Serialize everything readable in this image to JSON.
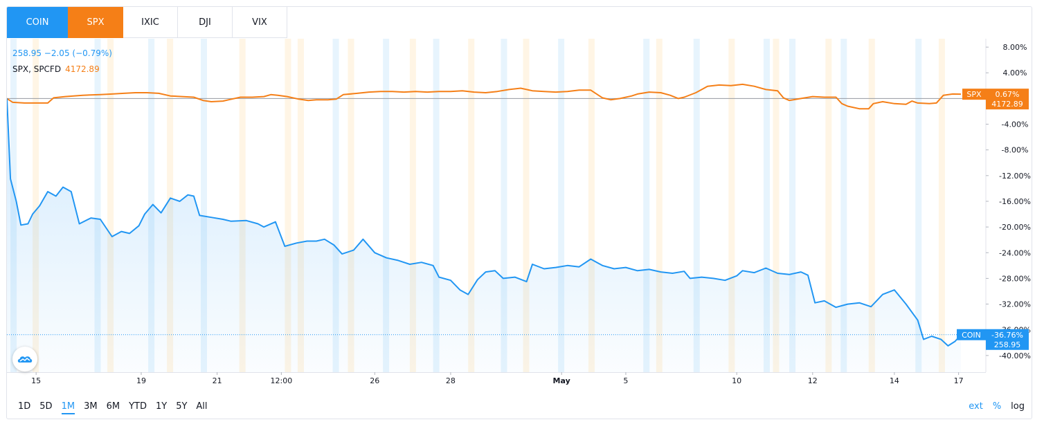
{
  "tabs": [
    {
      "label": "COIN",
      "style": "blue"
    },
    {
      "label": "SPX",
      "style": "orange"
    },
    {
      "label": "IXIC",
      "style": "plain"
    },
    {
      "label": "DJI",
      "style": "plain"
    },
    {
      "label": "VIX",
      "style": "plain"
    }
  ],
  "legend": {
    "coin_line": "258.95 −2.05 (−0.79%)",
    "spx_name": "SPX, SPCFD",
    "spx_value": "4172.89"
  },
  "footer": {
    "ranges": [
      "1D",
      "5D",
      "1M",
      "3M",
      "6M",
      "YTD",
      "1Y",
      "5Y",
      "All"
    ],
    "active_range": "1M",
    "options": [
      "ext",
      "%",
      "log"
    ],
    "active_options": [
      "ext",
      "%"
    ]
  },
  "colors": {
    "coin": "#2196f3",
    "spx": "#f57f17",
    "grid_line": "#b2b5be",
    "session_blue": "#e3f2fd",
    "session_orange": "#fff3e0"
  },
  "logo_icon": "tradingview-logo-icon",
  "chart_data": {
    "type": "line",
    "title": "",
    "xlabel": "",
    "ylabel": "",
    "y_unit": "percent change",
    "ylim": [
      -42.6,
      9.3
    ],
    "y_ticks": [
      8,
      4,
      0,
      -4,
      -8,
      -12,
      -16,
      -20,
      -24,
      -28,
      -32,
      -36,
      -40
    ],
    "y_tick_labels": [
      "8.00%",
      "4.00%",
      "",
      "-4.00%",
      "-8.00%",
      "-12.00%",
      "-16.00%",
      "-20.00%",
      "-24.00%",
      "-28.00%",
      "-32.00%",
      "-36.00%",
      "-40.00%"
    ],
    "x_ticks": [
      {
        "label": "15",
        "t": 2.5
      },
      {
        "label": "19",
        "t": 11.5
      },
      {
        "label": "21",
        "t": 18
      },
      {
        "label": "12:00",
        "t": 23.5
      },
      {
        "label": "26",
        "t": 31.5
      },
      {
        "label": "28",
        "t": 38
      },
      {
        "label": "May",
        "t": 47.5
      },
      {
        "label": "5",
        "t": 53
      },
      {
        "label": "10",
        "t": 62.5
      },
      {
        "label": "12",
        "t": 69
      },
      {
        "label": "14",
        "t": 76
      },
      {
        "label": "17",
        "t": 81.5
      }
    ],
    "x_range": [
      0,
      81.7
    ],
    "baseline": 0,
    "series": [
      {
        "name": "SPX",
        "color": "#f57f17",
        "last_pct_label": "0.67%",
        "last_price_label": "4172.89",
        "points": [
          [
            0,
            0
          ],
          [
            0.5,
            -0.6
          ],
          [
            1.5,
            -0.7
          ],
          [
            3.5,
            -0.7
          ],
          [
            4,
            0.1
          ],
          [
            5,
            0.3
          ],
          [
            6.5,
            0.5
          ],
          [
            8,
            0.6
          ],
          [
            9,
            0.7
          ],
          [
            10,
            0.8
          ],
          [
            11,
            0.9
          ],
          [
            12,
            0.9
          ],
          [
            13,
            0.8
          ],
          [
            14,
            0.4
          ],
          [
            15,
            0.3
          ],
          [
            16,
            0.2
          ],
          [
            16.8,
            -0.3
          ],
          [
            17.5,
            -0.5
          ],
          [
            18.5,
            -0.4
          ],
          [
            19,
            -0.2
          ],
          [
            20,
            0.2
          ],
          [
            21,
            0.2
          ],
          [
            22,
            0.3
          ],
          [
            22.6,
            0.6
          ],
          [
            23.2,
            0.5
          ],
          [
            24,
            0.3
          ],
          [
            25,
            -0.1
          ],
          [
            25.8,
            -0.3
          ],
          [
            26.5,
            -0.2
          ],
          [
            27.5,
            -0.2
          ],
          [
            28.2,
            -0.1
          ],
          [
            28.8,
            0.6
          ],
          [
            30,
            0.8
          ],
          [
            31,
            1.0
          ],
          [
            32,
            1.1
          ],
          [
            33,
            1.1
          ],
          [
            34,
            1.0
          ],
          [
            35,
            1.1
          ],
          [
            36,
            1.0
          ],
          [
            37,
            1.1
          ],
          [
            38,
            1.1
          ],
          [
            39,
            1.2
          ],
          [
            40,
            1.0
          ],
          [
            41,
            0.9
          ],
          [
            42,
            1.1
          ],
          [
            43,
            1.4
          ],
          [
            44,
            1.6
          ],
          [
            45,
            1.2
          ],
          [
            46,
            1.1
          ],
          [
            47,
            1.0
          ],
          [
            48,
            1.1
          ],
          [
            49,
            1.3
          ],
          [
            50,
            1.3
          ],
          [
            51,
            0.1
          ],
          [
            51.7,
            -0.2
          ],
          [
            52.5,
            0.0
          ],
          [
            53.5,
            0.4
          ],
          [
            54,
            0.7
          ],
          [
            55,
            1.0
          ],
          [
            56,
            0.9
          ],
          [
            56.8,
            0.5
          ],
          [
            57.5,
            0.0
          ],
          [
            58,
            0.2
          ],
          [
            59,
            0.9
          ],
          [
            59.5,
            1.4
          ],
          [
            60,
            1.9
          ],
          [
            61,
            2.1
          ],
          [
            62,
            2.0
          ],
          [
            63,
            2.2
          ],
          [
            64,
            1.9
          ],
          [
            65,
            1.4
          ],
          [
            66,
            1.2
          ],
          [
            66.5,
            0.1
          ],
          [
            67,
            -0.3
          ],
          [
            68,
            0.0
          ],
          [
            69,
            0.3
          ],
          [
            70,
            0.2
          ],
          [
            71,
            0.2
          ],
          [
            71.5,
            -0.8
          ],
          [
            72,
            -1.2
          ],
          [
            73,
            -1.6
          ],
          [
            73.8,
            -1.6
          ],
          [
            74.2,
            -0.8
          ],
          [
            75,
            -0.5
          ],
          [
            76,
            -0.8
          ],
          [
            77,
            -0.9
          ],
          [
            77.5,
            -0.4
          ],
          [
            78,
            -0.7
          ],
          [
            79,
            -0.8
          ],
          [
            79.6,
            -0.7
          ],
          [
            80.2,
            0.5
          ],
          [
            81,
            0.7
          ],
          [
            81.7,
            0.67
          ]
        ]
      },
      {
        "name": "COIN",
        "color": "#2196f3",
        "last_pct_label": "-36.76%",
        "last_price_label": "258.95",
        "points": [
          [
            0,
            0
          ],
          [
            0.3,
            -12.5
          ],
          [
            0.8,
            -16.0
          ],
          [
            1.2,
            -19.7
          ],
          [
            1.8,
            -19.5
          ],
          [
            2.2,
            -18.0
          ],
          [
            2.8,
            -16.7
          ],
          [
            3.5,
            -14.5
          ],
          [
            4.2,
            -15.2
          ],
          [
            4.8,
            -13.8
          ],
          [
            5.5,
            -14.5
          ],
          [
            6.2,
            -19.5
          ],
          [
            7.2,
            -18.6
          ],
          [
            8,
            -18.8
          ],
          [
            9,
            -21.5
          ],
          [
            9.8,
            -20.7
          ],
          [
            10.5,
            -21.0
          ],
          [
            11.3,
            -19.8
          ],
          [
            11.8,
            -18.0
          ],
          [
            12.5,
            -16.5
          ],
          [
            13.2,
            -17.8
          ],
          [
            14,
            -15.5
          ],
          [
            14.8,
            -16.0
          ],
          [
            15.5,
            -15.0
          ],
          [
            16,
            -15.2
          ],
          [
            16.5,
            -18.2
          ],
          [
            17.5,
            -18.5
          ],
          [
            18.5,
            -18.8
          ],
          [
            19.2,
            -19.1
          ],
          [
            20.5,
            -19.0
          ],
          [
            21.5,
            -19.5
          ],
          [
            22,
            -20.0
          ],
          [
            23,
            -19.2
          ],
          [
            23.8,
            -23.0
          ],
          [
            24.8,
            -22.5
          ],
          [
            25.7,
            -22.2
          ],
          [
            26.5,
            -22.2
          ],
          [
            27.2,
            -21.9
          ],
          [
            28,
            -22.8
          ],
          [
            28.7,
            -24.2
          ],
          [
            29.7,
            -23.6
          ],
          [
            30.5,
            -21.9
          ],
          [
            31.5,
            -24.0
          ],
          [
            32.5,
            -24.8
          ],
          [
            33.5,
            -25.2
          ],
          [
            34.5,
            -25.8
          ],
          [
            35.5,
            -25.5
          ],
          [
            36.5,
            -26.0
          ],
          [
            37,
            -27.8
          ],
          [
            38,
            -28.3
          ],
          [
            38.8,
            -29.8
          ],
          [
            39.5,
            -30.5
          ],
          [
            40.3,
            -28.2
          ],
          [
            41,
            -27.0
          ],
          [
            41.8,
            -26.8
          ],
          [
            42.5,
            -28.0
          ],
          [
            43.5,
            -27.8
          ],
          [
            44.5,
            -28.5
          ],
          [
            45,
            -25.8
          ],
          [
            46,
            -26.5
          ],
          [
            47,
            -26.3
          ],
          [
            48,
            -26.0
          ],
          [
            49,
            -26.2
          ],
          [
            50,
            -25.0
          ],
          [
            51,
            -26.0
          ],
          [
            52,
            -26.5
          ],
          [
            53,
            -26.3
          ],
          [
            54,
            -26.8
          ],
          [
            55,
            -26.6
          ],
          [
            56,
            -27.0
          ],
          [
            57,
            -27.2
          ],
          [
            58,
            -26.9
          ],
          [
            58.5,
            -28.0
          ],
          [
            59.5,
            -27.8
          ],
          [
            60.5,
            -28.0
          ],
          [
            61.5,
            -28.3
          ],
          [
            62.5,
            -27.6
          ],
          [
            63,
            -26.8
          ],
          [
            64,
            -27.1
          ],
          [
            65,
            -26.4
          ],
          [
            66,
            -27.2
          ],
          [
            67,
            -27.4
          ],
          [
            68,
            -27.0
          ],
          [
            68.6,
            -27.5
          ],
          [
            69.2,
            -31.8
          ],
          [
            70,
            -31.5
          ],
          [
            71,
            -32.5
          ],
          [
            72,
            -32.0
          ],
          [
            73,
            -31.8
          ],
          [
            74,
            -32.4
          ],
          [
            75,
            -30.5
          ],
          [
            76,
            -29.8
          ],
          [
            77,
            -32.0
          ],
          [
            78,
            -34.5
          ],
          [
            78.5,
            -37.5
          ],
          [
            79.2,
            -37.0
          ],
          [
            80,
            -37.5
          ],
          [
            80.6,
            -38.5
          ],
          [
            81.2,
            -37.8
          ],
          [
            81.7,
            -36.76
          ]
        ]
      }
    ],
    "shade_bands": [
      [
        0.3,
        "b"
      ],
      [
        2.2,
        "o"
      ],
      [
        7.5,
        "b"
      ],
      [
        8.6,
        "o"
      ],
      [
        12.1,
        "b"
      ],
      [
        13.7,
        "o"
      ],
      [
        16.6,
        "b"
      ],
      [
        19.9,
        "o"
      ],
      [
        23.8,
        "o"
      ],
      [
        24.9,
        "o"
      ],
      [
        27.9,
        "b"
      ],
      [
        29.2,
        "o"
      ],
      [
        32.2,
        "b"
      ],
      [
        34.5,
        "o"
      ],
      [
        36.5,
        "b"
      ],
      [
        39.5,
        "o"
      ],
      [
        42.3,
        "b"
      ],
      [
        44.2,
        "o"
      ],
      [
        47.2,
        "b"
      ],
      [
        49.8,
        "o"
      ],
      [
        54.5,
        "b"
      ],
      [
        55.6,
        "o"
      ],
      [
        58.8,
        "b"
      ],
      [
        61.8,
        "o"
      ],
      [
        64.8,
        "b"
      ],
      [
        65.6,
        "o"
      ],
      [
        67.0,
        "b"
      ],
      [
        70.1,
        "o"
      ],
      [
        71.4,
        "b"
      ],
      [
        73.8,
        "o"
      ],
      [
        77.8,
        "b"
      ],
      [
        79.8,
        "o"
      ]
    ]
  }
}
